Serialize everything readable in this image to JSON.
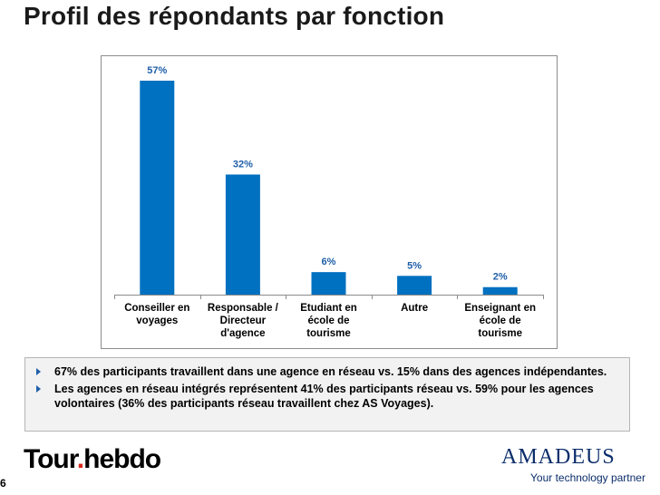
{
  "page": {
    "title": "Profil des répondants par fonction",
    "page_number": "6"
  },
  "chart_data": {
    "type": "bar",
    "categories": [
      "Conseiller en\nvoyages",
      "Responsable /\nDirecteur\nd'agence",
      "Etudiant en\nécole de\ntourisme",
      "Autre",
      "Enseignant en\nécole de\ntourisme"
    ],
    "values": [
      57,
      32,
      6,
      5,
      2
    ],
    "value_labels": [
      "57%",
      "32%",
      "6%",
      "5%",
      "2%"
    ],
    "title": "",
    "xlabel": "",
    "ylabel": "",
    "ylim": [
      0,
      57
    ],
    "bar_color": "#0070c0",
    "value_color": "#1f5fa8",
    "grid": false
  },
  "notes": [
    "67% des participants travaillent dans une agence en réseau vs. 15% dans des agences indépendantes.",
    "Les agences en réseau intégrés représentent 41% des participants réseau vs. 59% pour les agences volontaires (36% des participants réseau travaillent chez AS Voyages)."
  ],
  "logos": {
    "tour_part1": "Tour",
    "tour_dot": ".",
    "tour_part2": "hebdo",
    "amadeus": "amadeus",
    "amadeus_tagline": "Your technology partner"
  }
}
